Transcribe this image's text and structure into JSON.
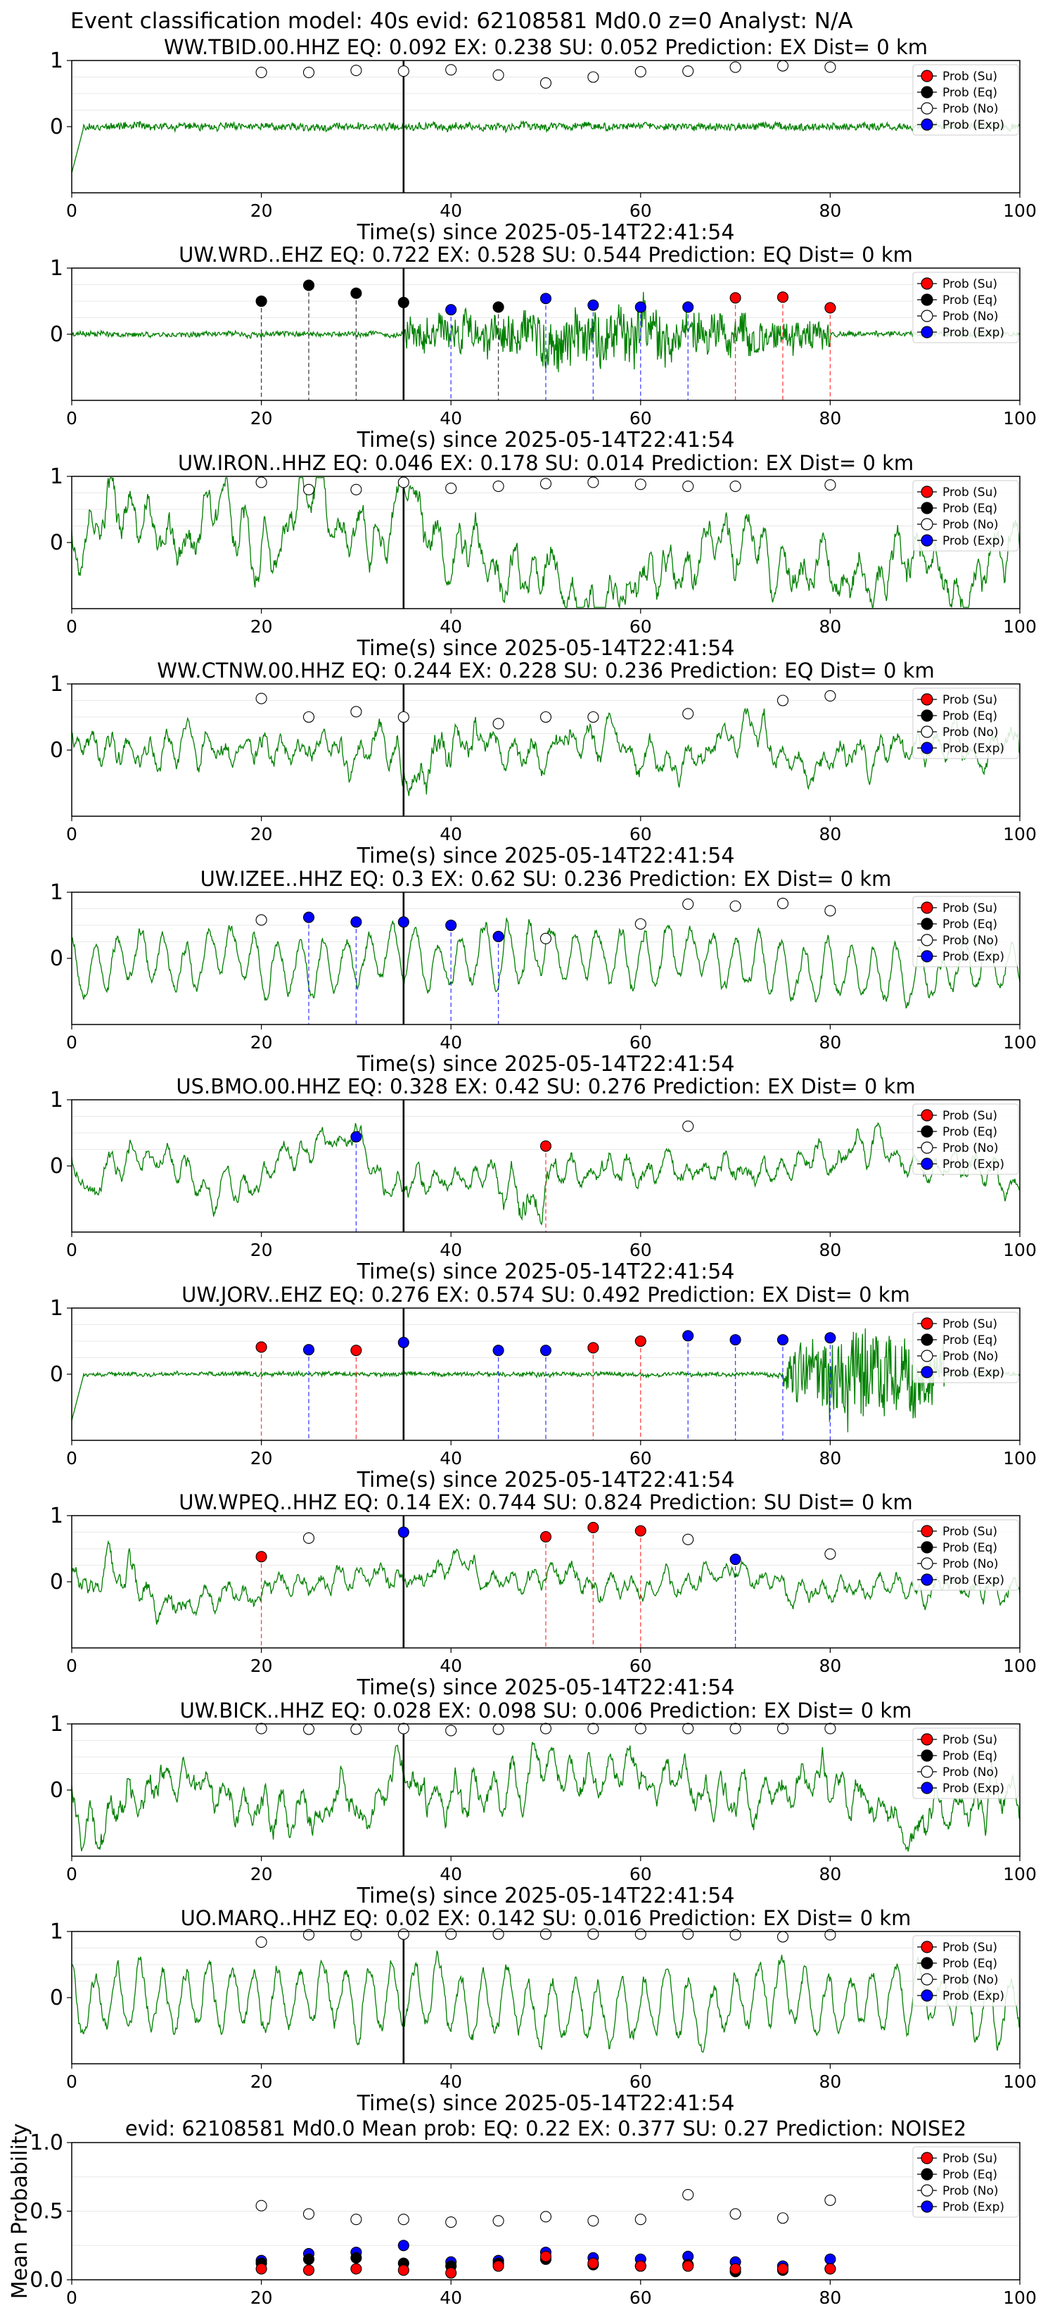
{
  "figure": {
    "suptitle": "Event classification model: 40s evid: 62108581 Md0.0 z=0 Analyst: N/A"
  },
  "legend_labels": [
    "Prob (Su)",
    "Prob (Eq)",
    "Prob (No)",
    "Prob (Exp)"
  ],
  "colors": {
    "trace": "#008000",
    "su": "#ff0000",
    "eq": "#000000",
    "no": "#ffffff",
    "exp": "#0000ff",
    "vline_su": "#ff0000",
    "vline_eq": "#000000",
    "vline_exp": "#0000ff",
    "onset_line": "#000000"
  },
  "chart_data": [
    {
      "type": "line",
      "title": "WW.TBID.00.HHZ   EQ: 0.092  EX: 0.238  SU: 0.052   Prediction: EX    Dist= 0 km",
      "xlabel": "Time(s) since 2025-05-14T22:41:54",
      "ylabel": "",
      "xlim": [
        0,
        100
      ],
      "ylim": [
        -1,
        1
      ],
      "xticks": [
        "0",
        "20",
        "40",
        "60",
        "80",
        "100"
      ],
      "yticks": [
        "0",
        "1"
      ],
      "onset": 35,
      "trace": {
        "character": "low",
        "amp": 0.09,
        "seed": 11,
        "initial_spike": true
      },
      "points": [
        {
          "t": 20,
          "p": 0.82,
          "cls": "no"
        },
        {
          "t": 25,
          "p": 0.82,
          "cls": "no"
        },
        {
          "t": 30,
          "p": 0.85,
          "cls": "no"
        },
        {
          "t": 35,
          "p": 0.84,
          "cls": "no"
        },
        {
          "t": 40,
          "p": 0.86,
          "cls": "no"
        },
        {
          "t": 45,
          "p": 0.78,
          "cls": "no"
        },
        {
          "t": 50,
          "p": 0.66,
          "cls": "no"
        },
        {
          "t": 55,
          "p": 0.75,
          "cls": "no"
        },
        {
          "t": 60,
          "p": 0.83,
          "cls": "no"
        },
        {
          "t": 65,
          "p": 0.84,
          "cls": "no"
        },
        {
          "t": 70,
          "p": 0.9,
          "cls": "no"
        },
        {
          "t": 75,
          "p": 0.92,
          "cls": "no"
        },
        {
          "t": 80,
          "p": 0.9,
          "cls": "no"
        }
      ]
    },
    {
      "type": "line",
      "title": "UW.WRD..EHZ   EQ: 0.722  EX: 0.528  SU: 0.544   Prediction: EQ    Dist= 0 km",
      "xlabel": "Time(s) since 2025-05-14T22:41:54",
      "ylabel": "",
      "xlim": [
        0,
        100
      ],
      "ylim": [
        -1,
        1
      ],
      "xticks": [
        "0",
        "20",
        "40",
        "60",
        "80",
        "100"
      ],
      "yticks": [
        "0",
        "1"
      ],
      "onset": 35,
      "trace": {
        "character": "burst",
        "amp": 0.05,
        "seed": 23,
        "burst_start": 35,
        "burst_end": 80,
        "burst_amp": 0.55
      },
      "points": [
        {
          "t": 20,
          "p": 0.5,
          "cls": "eq"
        },
        {
          "t": 25,
          "p": 0.74,
          "cls": "eq"
        },
        {
          "t": 30,
          "p": 0.62,
          "cls": "eq"
        },
        {
          "t": 35,
          "p": 0.48,
          "cls": "eq"
        },
        {
          "t": 40,
          "p": 0.37,
          "cls": "exp"
        },
        {
          "t": 45,
          "p": 0.41,
          "cls": "eq"
        },
        {
          "t": 50,
          "p": 0.54,
          "cls": "exp"
        },
        {
          "t": 55,
          "p": 0.44,
          "cls": "exp"
        },
        {
          "t": 60,
          "p": 0.41,
          "cls": "exp"
        },
        {
          "t": 65,
          "p": 0.41,
          "cls": "exp"
        },
        {
          "t": 70,
          "p": 0.55,
          "cls": "su"
        },
        {
          "t": 75,
          "p": 0.56,
          "cls": "su"
        },
        {
          "t": 80,
          "p": 0.4,
          "cls": "su"
        }
      ]
    },
    {
      "type": "line",
      "title": "UW.IRON..HHZ   EQ: 0.046  EX: 0.178  SU: 0.014   Prediction: EX    Dist= 0 km",
      "xlabel": "Time(s) since 2025-05-14T22:41:54",
      "ylabel": "",
      "xlim": [
        0,
        100
      ],
      "ylim": [
        -1,
        1
      ],
      "xticks": [
        "0",
        "20",
        "40",
        "60",
        "80",
        "100"
      ],
      "yticks": [
        "0",
        "1"
      ],
      "onset": 35,
      "trace": {
        "character": "noisy",
        "amp": 0.95,
        "seed": 37
      },
      "points": [
        {
          "t": 20,
          "p": 0.91,
          "cls": "no"
        },
        {
          "t": 25,
          "p": 0.8,
          "cls": "no"
        },
        {
          "t": 30,
          "p": 0.8,
          "cls": "no"
        },
        {
          "t": 35,
          "p": 0.91,
          "cls": "no"
        },
        {
          "t": 40,
          "p": 0.82,
          "cls": "no"
        },
        {
          "t": 45,
          "p": 0.85,
          "cls": "no"
        },
        {
          "t": 50,
          "p": 0.89,
          "cls": "no"
        },
        {
          "t": 55,
          "p": 0.91,
          "cls": "no"
        },
        {
          "t": 60,
          "p": 0.88,
          "cls": "no"
        },
        {
          "t": 65,
          "p": 0.85,
          "cls": "no"
        },
        {
          "t": 70,
          "p": 0.85,
          "cls": "no"
        },
        {
          "t": 80,
          "p": 0.87,
          "cls": "no"
        }
      ]
    },
    {
      "type": "line",
      "title": "WW.CTNW.00.HHZ   EQ: 0.244  EX: 0.228  SU: 0.236   Prediction: EQ    Dist= 0 km",
      "xlabel": "Time(s) since 2025-05-14T22:41:54",
      "ylabel": "",
      "xlim": [
        0,
        100
      ],
      "ylim": [
        -1,
        1
      ],
      "xticks": [
        "0",
        "20",
        "40",
        "60",
        "80",
        "100"
      ],
      "yticks": [
        "0",
        "1"
      ],
      "onset": 35,
      "trace": {
        "character": "noisy",
        "amp": 0.6,
        "seed": 41,
        "burst_start": 30,
        "burst_end": 45,
        "burst_amp": 1.0
      },
      "points": [
        {
          "t": 20,
          "p": 0.78,
          "cls": "no"
        },
        {
          "t": 25,
          "p": 0.5,
          "cls": "no"
        },
        {
          "t": 30,
          "p": 0.58,
          "cls": "no"
        },
        {
          "t": 35,
          "p": 0.5,
          "cls": "no"
        },
        {
          "t": 45,
          "p": 0.4,
          "cls": "no"
        },
        {
          "t": 50,
          "p": 0.5,
          "cls": "no"
        },
        {
          "t": 55,
          "p": 0.5,
          "cls": "no"
        },
        {
          "t": 65,
          "p": 0.55,
          "cls": "no"
        },
        {
          "t": 75,
          "p": 0.75,
          "cls": "no"
        },
        {
          "t": 80,
          "p": 0.82,
          "cls": "no"
        }
      ]
    },
    {
      "type": "line",
      "title": "UW.IZEE..HHZ   EQ: 0.3  EX: 0.62  SU: 0.236   Prediction: EX    Dist= 0 km",
      "xlabel": "Time(s) since 2025-05-14T22:41:54",
      "ylabel": "",
      "xlim": [
        0,
        100
      ],
      "ylim": [
        -1,
        1
      ],
      "xticks": [
        "0",
        "20",
        "40",
        "60",
        "80",
        "100"
      ],
      "yticks": [
        "0",
        "1"
      ],
      "onset": 35,
      "trace": {
        "character": "wavy",
        "amp": 0.65,
        "seed": 53,
        "burst_start": 35,
        "burst_end": 60,
        "burst_amp": 0.85
      },
      "points": [
        {
          "t": 20,
          "p": 0.58,
          "cls": "no"
        },
        {
          "t": 25,
          "p": 0.62,
          "cls": "exp"
        },
        {
          "t": 30,
          "p": 0.55,
          "cls": "exp"
        },
        {
          "t": 35,
          "p": 0.55,
          "cls": "exp"
        },
        {
          "t": 40,
          "p": 0.5,
          "cls": "exp"
        },
        {
          "t": 45,
          "p": 0.33,
          "cls": "exp"
        },
        {
          "t": 50,
          "p": 0.3,
          "cls": "no"
        },
        {
          "t": 60,
          "p": 0.52,
          "cls": "no"
        },
        {
          "t": 65,
          "p": 0.82,
          "cls": "no"
        },
        {
          "t": 70,
          "p": 0.79,
          "cls": "no"
        },
        {
          "t": 75,
          "p": 0.83,
          "cls": "no"
        },
        {
          "t": 80,
          "p": 0.72,
          "cls": "no"
        }
      ]
    },
    {
      "type": "line",
      "title": "US.BMO.00.HHZ   EQ: 0.328  EX: 0.42  SU: 0.276   Prediction: EX    Dist= 0 km",
      "xlabel": "Time(s) since 2025-05-14T22:41:54",
      "ylabel": "",
      "xlim": [
        0,
        100
      ],
      "ylim": [
        -1,
        1
      ],
      "xticks": [
        "0",
        "20",
        "40",
        "60",
        "80",
        "100"
      ],
      "yticks": [
        "0",
        "1"
      ],
      "onset": 35,
      "trace": {
        "character": "noisy",
        "amp": 0.5,
        "seed": 67,
        "burst_start": 44,
        "burst_end": 52,
        "burst_amp": 0.95
      },
      "points": [
        {
          "t": 30,
          "p": 0.44,
          "cls": "exp"
        },
        {
          "t": 50,
          "p": 0.3,
          "cls": "su"
        },
        {
          "t": 65,
          "p": 0.6,
          "cls": "no"
        }
      ]
    },
    {
      "type": "line",
      "title": "UW.JORV..EHZ   EQ: 0.276  EX: 0.574  SU: 0.492   Prediction: EX    Dist= 0 km",
      "xlabel": "Time(s) since 2025-05-14T22:41:54",
      "ylabel": "",
      "xlim": [
        0,
        100
      ],
      "ylim": [
        -1,
        1
      ],
      "xticks": [
        "0",
        "20",
        "40",
        "60",
        "80",
        "100"
      ],
      "yticks": [
        "0",
        "1"
      ],
      "onset": 35,
      "trace": {
        "character": "burst",
        "amp": 0.04,
        "seed": 79,
        "burst_start": 75,
        "burst_end": 92,
        "burst_amp": 0.95,
        "initial_spike": true
      },
      "points": [
        {
          "t": 20,
          "p": 0.41,
          "cls": "su"
        },
        {
          "t": 25,
          "p": 0.37,
          "cls": "exp"
        },
        {
          "t": 30,
          "p": 0.36,
          "cls": "su"
        },
        {
          "t": 35,
          "p": 0.48,
          "cls": "exp"
        },
        {
          "t": 45,
          "p": 0.36,
          "cls": "exp"
        },
        {
          "t": 50,
          "p": 0.36,
          "cls": "exp"
        },
        {
          "t": 55,
          "p": 0.4,
          "cls": "su"
        },
        {
          "t": 60,
          "p": 0.5,
          "cls": "su"
        },
        {
          "t": 65,
          "p": 0.58,
          "cls": "exp"
        },
        {
          "t": 70,
          "p": 0.52,
          "cls": "exp"
        },
        {
          "t": 75,
          "p": 0.52,
          "cls": "exp"
        },
        {
          "t": 80,
          "p": 0.55,
          "cls": "exp"
        }
      ]
    },
    {
      "type": "line",
      "title": "UW.WPEQ..HHZ   EQ: 0.14  EX: 0.744  SU: 0.824   Prediction: SU    Dist= 0 km",
      "xlabel": "Time(s) since 2025-05-14T22:41:54",
      "ylabel": "",
      "xlim": [
        0,
        100
      ],
      "ylim": [
        -1,
        1
      ],
      "xticks": [
        "0",
        "20",
        "40",
        "60",
        "80",
        "100"
      ],
      "yticks": [
        "0",
        "1"
      ],
      "onset": 35,
      "trace": {
        "character": "noisy",
        "amp": 0.45,
        "seed": 83,
        "burst_start": 0,
        "burst_end": 12,
        "burst_amp": 0.95
      },
      "points": [
        {
          "t": 20,
          "p": 0.38,
          "cls": "su"
        },
        {
          "t": 25,
          "p": 0.66,
          "cls": "no"
        },
        {
          "t": 35,
          "p": 0.75,
          "cls": "exp"
        },
        {
          "t": 50,
          "p": 0.68,
          "cls": "su"
        },
        {
          "t": 55,
          "p": 0.82,
          "cls": "su"
        },
        {
          "t": 60,
          "p": 0.77,
          "cls": "su"
        },
        {
          "t": 65,
          "p": 0.64,
          "cls": "no"
        },
        {
          "t": 70,
          "p": 0.34,
          "cls": "exp"
        },
        {
          "t": 80,
          "p": 0.42,
          "cls": "no"
        }
      ]
    },
    {
      "type": "line",
      "title": "UW.BICK..HHZ   EQ: 0.028  EX: 0.098  SU: 0.006   Prediction: EX    Dist= 0 km",
      "xlabel": "Time(s) since 2025-05-14T22:41:54",
      "ylabel": "",
      "xlim": [
        0,
        100
      ],
      "ylim": [
        -1,
        1
      ],
      "xticks": [
        "0",
        "20",
        "40",
        "60",
        "80",
        "100"
      ],
      "yticks": [
        "0",
        "1"
      ],
      "onset": 35,
      "trace": {
        "character": "noisy",
        "amp": 0.8,
        "seed": 97
      },
      "points": [
        {
          "t": 20,
          "p": 0.93,
          "cls": "no"
        },
        {
          "t": 25,
          "p": 0.92,
          "cls": "no"
        },
        {
          "t": 30,
          "p": 0.92,
          "cls": "no"
        },
        {
          "t": 35,
          "p": 0.93,
          "cls": "no"
        },
        {
          "t": 40,
          "p": 0.9,
          "cls": "no"
        },
        {
          "t": 45,
          "p": 0.92,
          "cls": "no"
        },
        {
          "t": 50,
          "p": 0.93,
          "cls": "no"
        },
        {
          "t": 55,
          "p": 0.93,
          "cls": "no"
        },
        {
          "t": 60,
          "p": 0.93,
          "cls": "no"
        },
        {
          "t": 65,
          "p": 0.93,
          "cls": "no"
        },
        {
          "t": 70,
          "p": 0.93,
          "cls": "no"
        },
        {
          "t": 75,
          "p": 0.93,
          "cls": "no"
        },
        {
          "t": 80,
          "p": 0.93,
          "cls": "no"
        }
      ]
    },
    {
      "type": "line",
      "title": "UO.MARQ..HHZ   EQ: 0.02  EX: 0.142  SU: 0.016   Prediction: EX    Dist= 0 km",
      "xlabel": "Time(s) since 2025-05-14T22:41:54",
      "ylabel": "",
      "xlim": [
        0,
        100
      ],
      "ylim": [
        -1,
        1
      ],
      "xticks": [
        "0",
        "20",
        "40",
        "60",
        "80",
        "100"
      ],
      "yticks": [
        "0",
        "1"
      ],
      "onset": 35,
      "trace": {
        "character": "wavy",
        "amp": 0.8,
        "seed": 101
      },
      "points": [
        {
          "t": 20,
          "p": 0.84,
          "cls": "no"
        },
        {
          "t": 25,
          "p": 0.95,
          "cls": "no"
        },
        {
          "t": 30,
          "p": 0.95,
          "cls": "no"
        },
        {
          "t": 35,
          "p": 0.96,
          "cls": "no"
        },
        {
          "t": 40,
          "p": 0.96,
          "cls": "no"
        },
        {
          "t": 45,
          "p": 0.96,
          "cls": "no"
        },
        {
          "t": 50,
          "p": 0.96,
          "cls": "no"
        },
        {
          "t": 55,
          "p": 0.96,
          "cls": "no"
        },
        {
          "t": 60,
          "p": 0.96,
          "cls": "no"
        },
        {
          "t": 65,
          "p": 0.96,
          "cls": "no"
        },
        {
          "t": 70,
          "p": 0.95,
          "cls": "no"
        },
        {
          "t": 75,
          "p": 0.92,
          "cls": "no"
        },
        {
          "t": 80,
          "p": 0.95,
          "cls": "no"
        }
      ]
    },
    {
      "type": "scatter",
      "title": "evid: 62108581  Md0.0   Mean prob:   EQ: 0.22  EX: 0.377  SU: 0.27   Prediction: NOISE2",
      "xlabel": "",
      "ylabel": "Mean Probability",
      "xlim": [
        0,
        100
      ],
      "ylim": [
        0,
        1
      ],
      "xticks": [
        "0",
        "20",
        "40",
        "60",
        "80",
        "100"
      ],
      "yticks": [
        "0.0",
        "0.5",
        "1.0"
      ],
      "t": [
        20,
        25,
        30,
        35,
        40,
        45,
        50,
        55,
        60,
        65,
        70,
        75,
        80
      ],
      "series": [
        {
          "cls": "no",
          "values": [
            0.54,
            0.48,
            0.44,
            0.44,
            0.42,
            0.43,
            0.46,
            0.43,
            0.44,
            0.62,
            0.48,
            0.45,
            0.58
          ]
        },
        {
          "cls": "exp",
          "values": [
            0.14,
            0.19,
            0.2,
            0.25,
            0.13,
            0.14,
            0.2,
            0.16,
            0.15,
            0.17,
            0.13,
            0.1,
            0.15
          ]
        },
        {
          "cls": "eq",
          "values": [
            0.12,
            0.15,
            0.16,
            0.12,
            0.1,
            0.12,
            0.15,
            0.11,
            0.1,
            0.11,
            0.06,
            0.07,
            0.08
          ]
        },
        {
          "cls": "su",
          "values": [
            0.08,
            0.07,
            0.08,
            0.07,
            0.05,
            0.1,
            0.17,
            0.12,
            0.1,
            0.1,
            0.08,
            0.08,
            0.08
          ]
        }
      ]
    }
  ]
}
